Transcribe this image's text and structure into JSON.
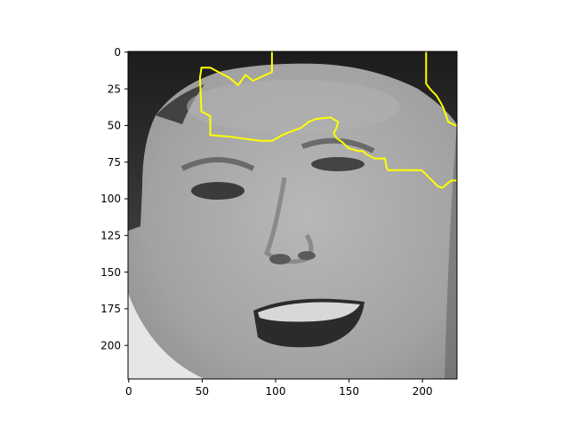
{
  "figure": {
    "subject": "grayscale face close-up with explanation overlay",
    "image_width_units": 224,
    "image_height_units": 224,
    "x_ticks": [
      0,
      50,
      100,
      150,
      200
    ],
    "y_ticks": [
      0,
      25,
      50,
      75,
      100,
      125,
      150,
      175,
      200
    ],
    "x_tick_labels": [
      "0",
      "50",
      "100",
      "150",
      "200"
    ],
    "y_tick_labels": [
      "0",
      "25",
      "50",
      "75",
      "100",
      "125",
      "150",
      "175",
      "200"
    ],
    "overlay_color": "#ffff00",
    "overlay_paths_units": [
      [
        [
          98,
          0
        ],
        [
          98,
          14
        ],
        [
          85,
          20
        ],
        [
          80,
          16
        ],
        [
          75,
          23
        ],
        [
          69,
          18
        ],
        [
          56,
          11
        ],
        [
          50,
          11
        ],
        [
          49,
          18
        ],
        [
          50,
          41
        ],
        [
          56,
          44
        ],
        [
          56,
          57
        ],
        [
          68,
          58
        ],
        [
          90,
          61
        ],
        [
          98,
          61
        ],
        [
          105,
          57
        ],
        [
          110,
          55
        ],
        [
          118,
          52
        ],
        [
          123,
          48
        ],
        [
          128,
          46
        ],
        [
          138,
          45
        ],
        [
          143,
          48
        ],
        [
          142,
          52
        ],
        [
          140,
          56
        ],
        [
          142,
          59
        ],
        [
          146,
          62
        ],
        [
          150,
          66
        ],
        [
          157,
          68
        ],
        [
          160,
          68
        ],
        [
          162,
          70
        ],
        [
          168,
          73
        ],
        [
          175,
          73
        ],
        [
          176,
          79
        ],
        [
          177,
          81
        ],
        [
          200,
          81
        ],
        [
          204,
          85
        ],
        [
          211,
          92
        ],
        [
          214,
          93
        ],
        [
          220,
          88
        ],
        [
          224,
          88
        ]
      ],
      [
        [
          203,
          0
        ],
        [
          203,
          22
        ],
        [
          206,
          26
        ],
        [
          210,
          30
        ],
        [
          213,
          35
        ],
        [
          215,
          39
        ],
        [
          218,
          48
        ],
        [
          224,
          51
        ]
      ]
    ]
  }
}
